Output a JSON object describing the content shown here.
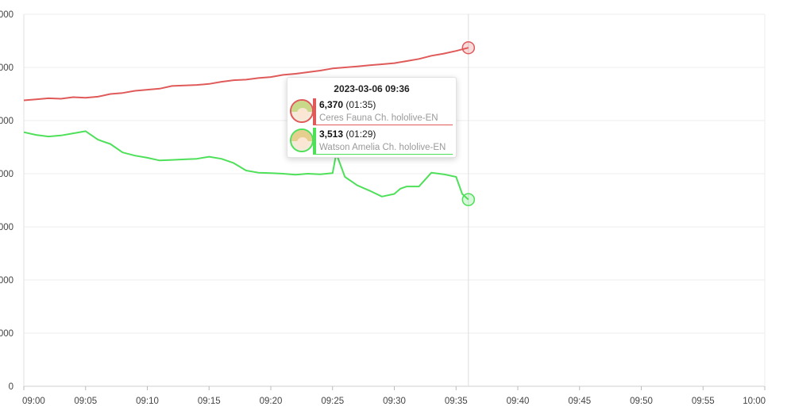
{
  "chart_data": {
    "type": "line",
    "x_ticks": [
      "09:00",
      "09:05",
      "09:10",
      "09:15",
      "09:20",
      "09:25",
      "09:30",
      "09:35",
      "09:40",
      "09:45",
      "09:50",
      "09:55",
      "10:00"
    ],
    "y_tick_labels": [
      "0",
      "000",
      "000",
      "000",
      "000",
      "000",
      "000",
      "000"
    ],
    "ylim": [
      0,
      7000
    ],
    "xlim_minutes": [
      0,
      60
    ],
    "grid": true,
    "hover_minute": 36,
    "series": [
      {
        "name": "Ceres Fauna Ch. hololive-EN",
        "color": "#e05a5a",
        "x": [
          0,
          1,
          2,
          3,
          4,
          5,
          6,
          7,
          8,
          9,
          10,
          11,
          12,
          13,
          14,
          15,
          16,
          17,
          18,
          19,
          20,
          21,
          22,
          23,
          24,
          25,
          26,
          27,
          28,
          29,
          30,
          31,
          32,
          33,
          34,
          35,
          36
        ],
        "values": [
          5380,
          5400,
          5420,
          5410,
          5440,
          5430,
          5450,
          5500,
          5520,
          5560,
          5580,
          5600,
          5650,
          5660,
          5670,
          5690,
          5730,
          5760,
          5770,
          5800,
          5820,
          5860,
          5880,
          5910,
          5940,
          5980,
          6000,
          6020,
          6040,
          6060,
          6080,
          6120,
          6160,
          6220,
          6260,
          6310,
          6370
        ]
      },
      {
        "name": "Watson Amelia Ch. hololive-EN",
        "color": "#4fe05a",
        "x": [
          0,
          1,
          2,
          3,
          4,
          5,
          6,
          7,
          8,
          9,
          10,
          11,
          12,
          13,
          14,
          15,
          16,
          17,
          18,
          19,
          20,
          21,
          22,
          23,
          24,
          25,
          25.3,
          26,
          27,
          28,
          29,
          30,
          30.5,
          31,
          32,
          33,
          34,
          35,
          35.5,
          36
        ],
        "values": [
          4780,
          4730,
          4700,
          4720,
          4760,
          4800,
          4640,
          4560,
          4400,
          4340,
          4300,
          4250,
          4260,
          4270,
          4280,
          4320,
          4280,
          4200,
          4060,
          4020,
          4010,
          4000,
          3980,
          4000,
          3990,
          4010,
          4380,
          3940,
          3780,
          3680,
          3570,
          3620,
          3720,
          3760,
          3760,
          4020,
          3990,
          3940,
          3620,
          3513
        ]
      }
    ]
  },
  "tooltip": {
    "title": "2023-03-06 09:36",
    "rows": [
      {
        "value": "6,370",
        "time": "(01:35)",
        "name": "Ceres Fauna Ch. hololive-EN",
        "color": "#e05a5a",
        "hair_color": "#c9d98a"
      },
      {
        "value": "3,513",
        "time": "(01:29)",
        "name": "Watson Amelia Ch. hololive-EN",
        "color": "#4fe05a",
        "hair_color": "#e6cf8e"
      }
    ]
  }
}
